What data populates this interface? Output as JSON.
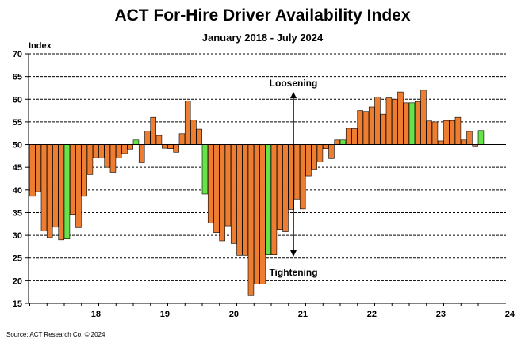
{
  "chart_data": {
    "type": "bar",
    "title": "ACT For-Hire Driver Availability Index",
    "subtitle": "January 2018 - July 2024",
    "ylabel": "Index",
    "xlabel": "",
    "ylim": [
      15,
      70
    ],
    "yticks": [
      "70",
      "65",
      "60",
      "55",
      "50",
      "45",
      "40",
      "35",
      "30",
      "25",
      "20",
      "15"
    ],
    "baseline": 50,
    "x_tick_labels": [
      "18",
      "19",
      "20",
      "21",
      "22",
      "23",
      "24"
    ],
    "x_tick_start_index": 12,
    "x_tick_step": 12,
    "grid": true,
    "start": "2018-01",
    "values": [
      38.6,
      39.6,
      31,
      29.5,
      31.8,
      29,
      29.2,
      34.6,
      31.7,
      38.6,
      43.4,
      47.1,
      47,
      45,
      43.9,
      47,
      48,
      49,
      51,
      46,
      53,
      56,
      52,
      49.2,
      49.1,
      48.3,
      52.4,
      59.6,
      55.4,
      53.4,
      39.1,
      32.7,
      30.6,
      28.8,
      32.1,
      28.2,
      25.6,
      25.6,
      16.7,
      19.3,
      19.3,
      25.7,
      25.7,
      31.3,
      30.8,
      35.7,
      38,
      35.8,
      43.1,
      44.6,
      46.2,
      49.1,
      46.9,
      51,
      51,
      53.6,
      53.5,
      57.5,
      57.3,
      58.3,
      60.5,
      56.7,
      60.3,
      60,
      61.6,
      59.2,
      59.2,
      59.5,
      62,
      55.2,
      55,
      50.8,
      55.3,
      55.3,
      56,
      51,
      52.9,
      49.7,
      53.1
    ],
    "colors": [
      "o",
      "o",
      "o",
      "o",
      "o",
      "o",
      "g",
      "o",
      "o",
      "o",
      "o",
      "o",
      "o",
      "o",
      "o",
      "o",
      "o",
      "o",
      "g",
      "o",
      "o",
      "o",
      "o",
      "o",
      "o",
      "o",
      "o",
      "o",
      "o",
      "o",
      "g",
      "o",
      "o",
      "o",
      "o",
      "o",
      "o",
      "o",
      "o",
      "o",
      "o",
      "g",
      "o",
      "o",
      "o",
      "o",
      "o",
      "o",
      "o",
      "o",
      "o",
      "o",
      "o",
      "o",
      "g",
      "o",
      "o",
      "o",
      "o",
      "o",
      "o",
      "o",
      "o",
      "o",
      "o",
      "o",
      "g",
      "o",
      "o",
      "o",
      "o",
      "o",
      "o",
      "o",
      "o",
      "o",
      "o",
      "o",
      "g"
    ],
    "color_map": {
      "o": "#ED7D31",
      "g": "#66E34A"
    },
    "annotations": {
      "top": "Loosening",
      "bottom": "Tightening"
    }
  },
  "source": "Source: ACT Research Co. © 2024"
}
